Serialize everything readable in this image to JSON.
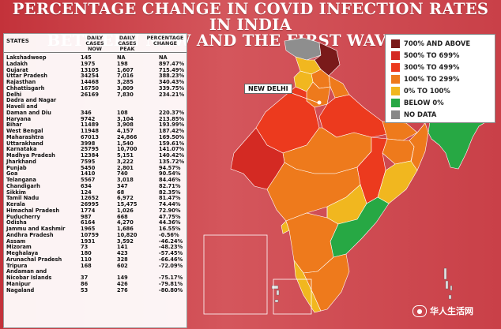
{
  "title_line1": "PERCENTAGE CHANGE IN COVID INFECTION RATES IN INDIA",
  "title_line2": "BETWEEN NOW AND THE FIRST WAVE PEAK",
  "table": {
    "col_state": "STATES",
    "col_daily": "DAILY\nCASES\nNOW",
    "col_peak": "DAILY\nCASES\nPEAK",
    "col_pct": "PERCENTAGE\nCHANGE"
  },
  "chart_data": {
    "type": "table",
    "rows": [
      {
        "state": "Lakshadweep",
        "now": "145",
        "peak": "NA",
        "pct": "NA"
      },
      {
        "state": "Ladakh",
        "now": "1975",
        "peak": "198",
        "pct": "897.47%"
      },
      {
        "state": "Gujarat",
        "now": "13105",
        "peak": "1,607",
        "pct": "715.49%"
      },
      {
        "state": "Uttar Pradesh",
        "now": "34254",
        "peak": "7,016",
        "pct": "388.23%"
      },
      {
        "state": "Rajasthan",
        "now": "14468",
        "peak": "3,285",
        "pct": "340.43%"
      },
      {
        "state": "Chhattisgarh",
        "now": "16750",
        "peak": "3,809",
        "pct": "339.75%"
      },
      {
        "state": "Delhi",
        "now": "26169",
        "peak": "7,830",
        "pct": "234.21%"
      },
      {
        "state": "Dadra and Nagar",
        "now": "",
        "peak": "",
        "pct": ""
      },
      {
        "state": "Haveli and",
        "now": "",
        "peak": "",
        "pct": ""
      },
      {
        "state": "Daman and Diu",
        "now": "346",
        "peak": "108",
        "pct": "220.37%"
      },
      {
        "state": "Haryana",
        "now": "9742",
        "peak": "3,104",
        "pct": "213.85%"
      },
      {
        "state": "Bihar",
        "now": "11489",
        "peak": "3,908",
        "pct": "193.99%"
      },
      {
        "state": "West Bengal",
        "now": "11948",
        "peak": "4,157",
        "pct": "187.42%"
      },
      {
        "state": "Maharashtra",
        "now": "67013",
        "peak": "24,866",
        "pct": "169.50%"
      },
      {
        "state": "Uttarakhand",
        "now": "3998",
        "peak": "1,540",
        "pct": "159.61%"
      },
      {
        "state": "Karnataka",
        "now": "25795",
        "peak": "10,700",
        "pct": "141.07%"
      },
      {
        "state": "Madhya Pradesh",
        "now": "12384",
        "peak": "5,151",
        "pct": "140.42%"
      },
      {
        "state": "Jharkhand",
        "now": "7595",
        "peak": "3,222",
        "pct": "135.72%"
      },
      {
        "state": "Punjab",
        "now": "5450",
        "peak": "2,801",
        "pct": "94.57%"
      },
      {
        "state": "Goa",
        "now": "1410",
        "peak": "740",
        "pct": "90.54%"
      },
      {
        "state": "Telangana",
        "now": "5567",
        "peak": "3,018",
        "pct": "84.46%"
      },
      {
        "state": "Chandigarh",
        "now": "634",
        "peak": "347",
        "pct": "82.71%"
      },
      {
        "state": "Sikkim",
        "now": "124",
        "peak": "68",
        "pct": "82.35%"
      },
      {
        "state": "Tamil Nadu",
        "now": "12652",
        "peak": "6,972",
        "pct": "81.47%"
      },
      {
        "state": "Kerala",
        "now": "26995",
        "peak": "15,475",
        "pct": "74.44%"
      },
      {
        "state": "Himachal Pradesh",
        "now": "1774",
        "peak": "1,026",
        "pct": "72.90%"
      },
      {
        "state": "Puducherry",
        "now": "987",
        "peak": "668",
        "pct": "47.75%"
      },
      {
        "state": "Odisha",
        "now": "6164",
        "peak": "4,270",
        "pct": "44.36%"
      },
      {
        "state": "Jammu and Kashmir",
        "now": "1965",
        "peak": "1,686",
        "pct": "16.55%"
      },
      {
        "state": "Andhra Pradesh",
        "now": "10759",
        "peak": "10,820",
        "pct": "-0.56%"
      },
      {
        "state": "Assam",
        "now": "1931",
        "peak": "3,592",
        "pct": "-46.24%"
      },
      {
        "state": "Mizoram",
        "now": "73",
        "peak": "141",
        "pct": "-48.23%"
      },
      {
        "state": "Meghalaya",
        "now": "180",
        "peak": "423",
        "pct": "-57.45%"
      },
      {
        "state": "Arunachal Pradesh",
        "now": "110",
        "peak": "328",
        "pct": "-66.46%"
      },
      {
        "state": "Tripura",
        "now": "168",
        "peak": "602",
        "pct": "-72.09%"
      },
      {
        "state": "Andaman and",
        "now": "",
        "peak": "",
        "pct": ""
      },
      {
        "state": "Nicobar Islands",
        "now": "37",
        "peak": "149",
        "pct": "-75.17%"
      },
      {
        "state": "Manipur",
        "now": "86",
        "peak": "426",
        "pct": "-79.81%"
      },
      {
        "state": "Nagaland",
        "now": "53",
        "peak": "276",
        "pct": "-80.80%"
      }
    ]
  },
  "legend": [
    {
      "label": "700% AND ABOVE",
      "color": "#7a1a1a"
    },
    {
      "label": "500% TO 699%",
      "color": "#d42a23"
    },
    {
      "label": "300% TO 499%",
      "color": "#ec3a1e"
    },
    {
      "label": "100% TO 299%",
      "color": "#ee7a1c"
    },
    {
      "label": "0% TO 100%",
      "color": "#f1b71f"
    },
    {
      "label": "BELOW 0%",
      "color": "#27a844"
    },
    {
      "label": "NO DATA",
      "color": "#888888"
    }
  ],
  "callout": "NEW DELHI",
  "watermark": "华人生活网"
}
